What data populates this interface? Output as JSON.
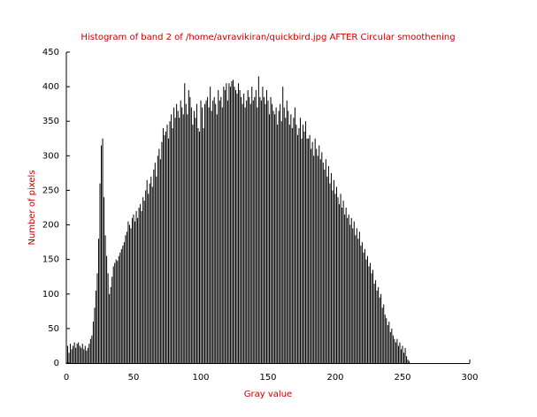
{
  "chart_data": {
    "type": "bar",
    "title": "Histogram of band 2 of /home/avravikiran/quickbird.jpg AFTER Circular smoothening",
    "xlabel": "Gray value",
    "ylabel": "Number of pixels",
    "x": [
      0,
      1,
      2,
      3,
      4,
      5,
      6,
      7,
      8,
      9,
      10,
      11,
      12,
      13,
      14,
      15,
      16,
      17,
      18,
      19,
      20,
      21,
      22,
      23,
      24,
      25,
      26,
      27,
      28,
      29,
      30,
      31,
      32,
      33,
      34,
      35,
      36,
      37,
      38,
      39,
      40,
      41,
      42,
      43,
      44,
      45,
      46,
      47,
      48,
      49,
      50,
      51,
      52,
      53,
      54,
      55,
      56,
      57,
      58,
      59,
      60,
      61,
      62,
      63,
      64,
      65,
      66,
      67,
      68,
      69,
      70,
      71,
      72,
      73,
      74,
      75,
      76,
      77,
      78,
      79,
      80,
      81,
      82,
      83,
      84,
      85,
      86,
      87,
      88,
      89,
      90,
      91,
      92,
      93,
      94,
      95,
      96,
      97,
      98,
      99,
      100,
      101,
      102,
      103,
      104,
      105,
      106,
      107,
      108,
      109,
      110,
      111,
      112,
      113,
      114,
      115,
      116,
      117,
      118,
      119,
      120,
      121,
      122,
      123,
      124,
      125,
      126,
      127,
      128,
      129,
      130,
      131,
      132,
      133,
      134,
      135,
      136,
      137,
      138,
      139,
      140,
      141,
      142,
      143,
      144,
      145,
      146,
      147,
      148,
      149,
      150,
      151,
      152,
      153,
      154,
      155,
      156,
      157,
      158,
      159,
      160,
      161,
      162,
      163,
      164,
      165,
      166,
      167,
      168,
      169,
      170,
      171,
      172,
      173,
      174,
      175,
      176,
      177,
      178,
      179,
      180,
      181,
      182,
      183,
      184,
      185,
      186,
      187,
      188,
      189,
      190,
      191,
      192,
      193,
      194,
      195,
      196,
      197,
      198,
      199,
      200,
      201,
      202,
      203,
      204,
      205,
      206,
      207,
      208,
      209,
      210,
      211,
      212,
      213,
      214,
      215,
      216,
      217,
      218,
      219,
      220,
      221,
      222,
      223,
      224,
      225,
      226,
      227,
      228,
      229,
      230,
      231,
      232,
      233,
      234,
      235,
      236,
      237,
      238,
      239,
      240,
      241,
      242,
      243,
      244,
      245,
      246,
      247,
      248,
      249,
      250,
      251,
      252,
      253,
      254,
      255
    ],
    "values": [
      20,
      25,
      15,
      28,
      20,
      25,
      30,
      22,
      28,
      30,
      25,
      22,
      28,
      20,
      25,
      18,
      22,
      28,
      35,
      40,
      60,
      80,
      105,
      130,
      180,
      260,
      315,
      325,
      240,
      185,
      155,
      130,
      100,
      110,
      125,
      140,
      145,
      150,
      148,
      155,
      160,
      165,
      170,
      175,
      185,
      190,
      205,
      200,
      195,
      210,
      215,
      205,
      220,
      210,
      225,
      230,
      220,
      240,
      235,
      250,
      265,
      245,
      260,
      270,
      255,
      280,
      290,
      270,
      300,
      310,
      295,
      320,
      340,
      330,
      335,
      345,
      325,
      350,
      360,
      340,
      370,
      355,
      375,
      365,
      355,
      380,
      370,
      360,
      405,
      375,
      360,
      395,
      385,
      370,
      345,
      365,
      355,
      375,
      340,
      335,
      380,
      370,
      340,
      375,
      380,
      385,
      370,
      400,
      365,
      380,
      385,
      375,
      360,
      395,
      380,
      385,
      370,
      400,
      395,
      405,
      380,
      405,
      400,
      408,
      410,
      400,
      395,
      390,
      405,
      395,
      385,
      375,
      390,
      370,
      380,
      395,
      385,
      375,
      400,
      380,
      385,
      395,
      370,
      415,
      385,
      380,
      400,
      385,
      375,
      395,
      380,
      360,
      385,
      375,
      365,
      360,
      370,
      345,
      365,
      375,
      350,
      400,
      370,
      355,
      380,
      365,
      345,
      360,
      340,
      355,
      370,
      345,
      330,
      340,
      355,
      325,
      345,
      335,
      350,
      325,
      325,
      330,
      310,
      320,
      300,
      325,
      310,
      300,
      315,
      295,
      305,
      290,
      280,
      295,
      270,
      285,
      260,
      275,
      250,
      265,
      245,
      255,
      240,
      230,
      245,
      225,
      235,
      215,
      225,
      210,
      215,
      200,
      210,
      195,
      205,
      185,
      195,
      180,
      190,
      170,
      175,
      160,
      165,
      150,
      155,
      140,
      145,
      130,
      135,
      115,
      120,
      105,
      110,
      95,
      100,
      80,
      85,
      70,
      65,
      55,
      60,
      45,
      50,
      40,
      35,
      30,
      35,
      25,
      30,
      20,
      25,
      15,
      22,
      10,
      5,
      3
    ],
    "color": "#000000",
    "xlim": [
      0,
      300
    ],
    "xticks": [
      0,
      50,
      100,
      150,
      200,
      250,
      300
    ],
    "ylim": [
      0,
      450
    ],
    "yticks": [
      0,
      50,
      100,
      150,
      200,
      250,
      300,
      350,
      400,
      450
    ],
    "grid": false
  }
}
